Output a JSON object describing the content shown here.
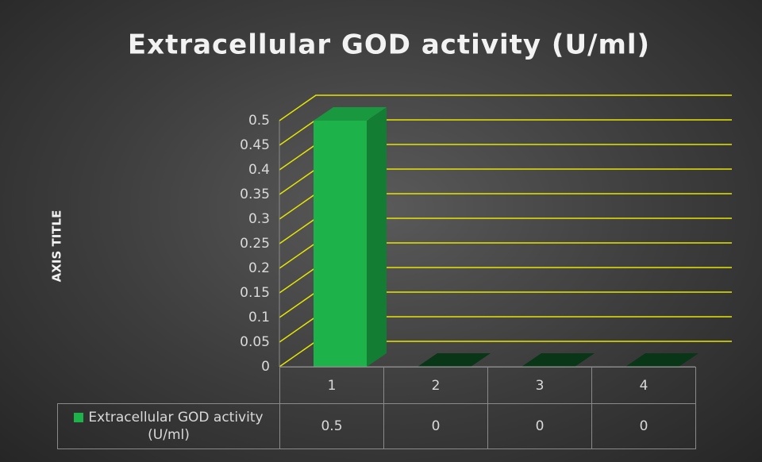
{
  "chart_data": {
    "type": "bar3d",
    "title": "Extracellular GOD activity (U/ml)",
    "y_axis_title": "AXIS TITLE",
    "categories": [
      "1",
      "2",
      "3",
      "4"
    ],
    "series": [
      {
        "name": "Extracellular GOD activity (U/ml)",
        "color": "#1db34a",
        "values": [
          0.5,
          0,
          0,
          0
        ]
      }
    ],
    "ylim": [
      0,
      0.5
    ],
    "yticks": [
      0,
      0.05,
      0.1,
      0.15,
      0.2,
      0.25,
      0.3,
      0.35,
      0.4,
      0.45,
      0.5
    ],
    "grid": true,
    "grid_color": "#e6e600",
    "data_table": true
  }
}
